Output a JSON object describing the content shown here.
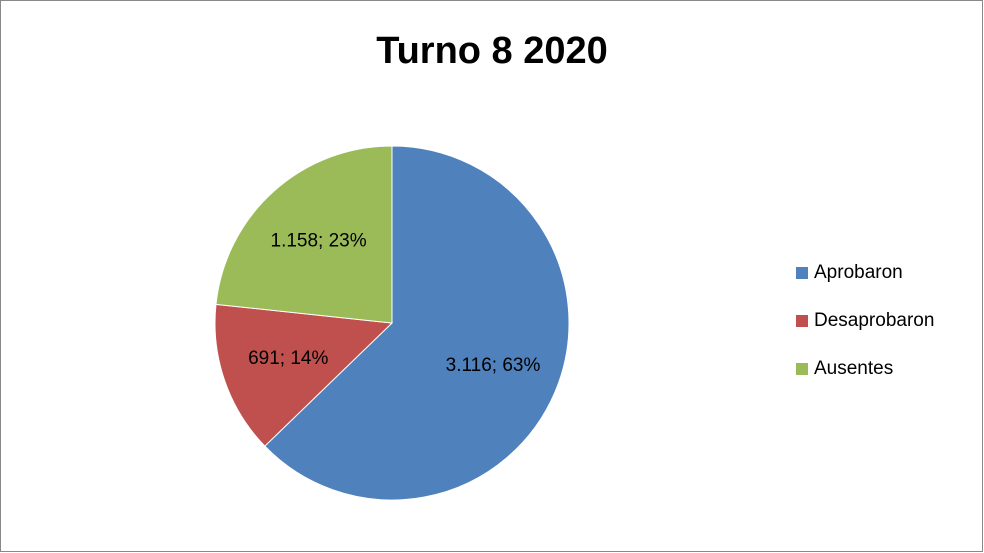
{
  "chart_data": {
    "type": "pie",
    "title": "Turno 8 2020",
    "categories": [
      "Aprobaron",
      "Desaprobaron",
      "Ausentes"
    ],
    "values": [
      3116,
      691,
      1158
    ],
    "value_labels": [
      "3.116; 63%",
      "691; 14%",
      "1.158; 23%"
    ],
    "colors": [
      "#4f81bd",
      "#c0504d",
      "#9bbb59"
    ],
    "legend": "right"
  }
}
